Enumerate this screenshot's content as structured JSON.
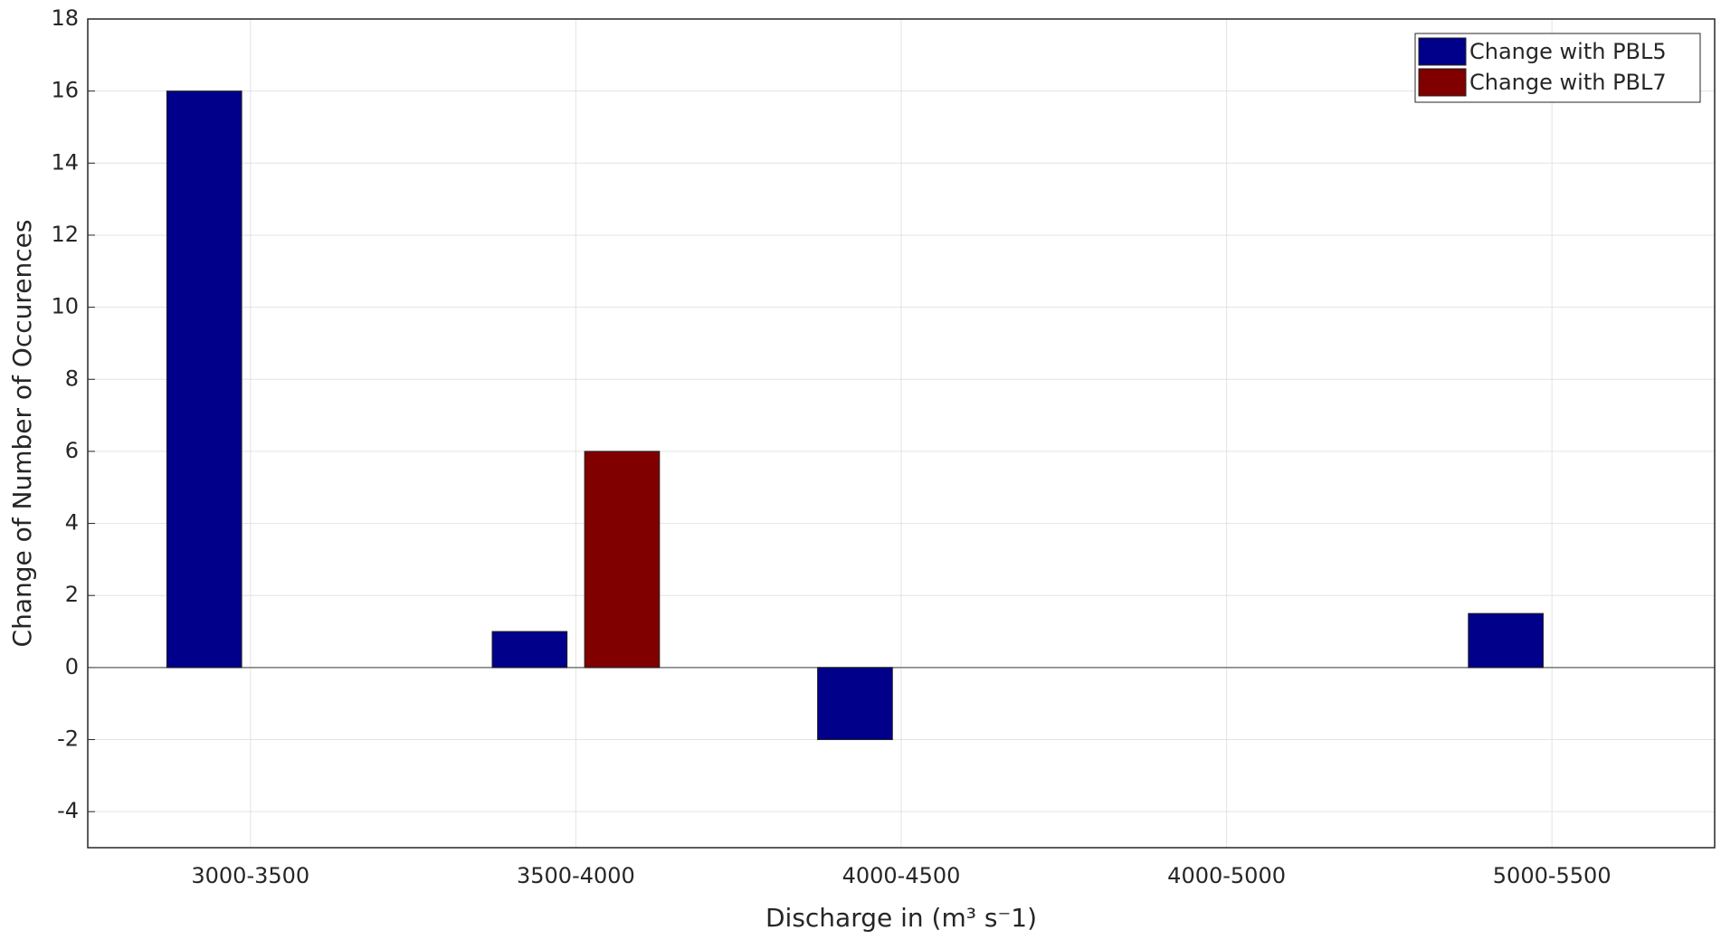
{
  "chart_data": {
    "type": "bar",
    "xlabel": "Discharge in (m³ s⁻1)",
    "ylabel": "Change of Number of Occurences",
    "categories": [
      "3000-3500",
      "3500-4000",
      "4000-4500",
      "4000-5000",
      "5000-5500"
    ],
    "series": [
      {
        "name": "Change with PBL5",
        "color": "#00008b",
        "values": [
          16,
          1,
          -2,
          0,
          1.5
        ]
      },
      {
        "name": "Change with PBL7",
        "color": "#800000",
        "values": [
          0,
          6,
          0,
          0,
          0
        ]
      }
    ],
    "ylim": [
      -5,
      18
    ],
    "yticks": [
      -4,
      -2,
      0,
      2,
      4,
      6,
      8,
      10,
      12,
      14,
      16,
      18
    ],
    "grid": true,
    "legend": "upper right"
  }
}
